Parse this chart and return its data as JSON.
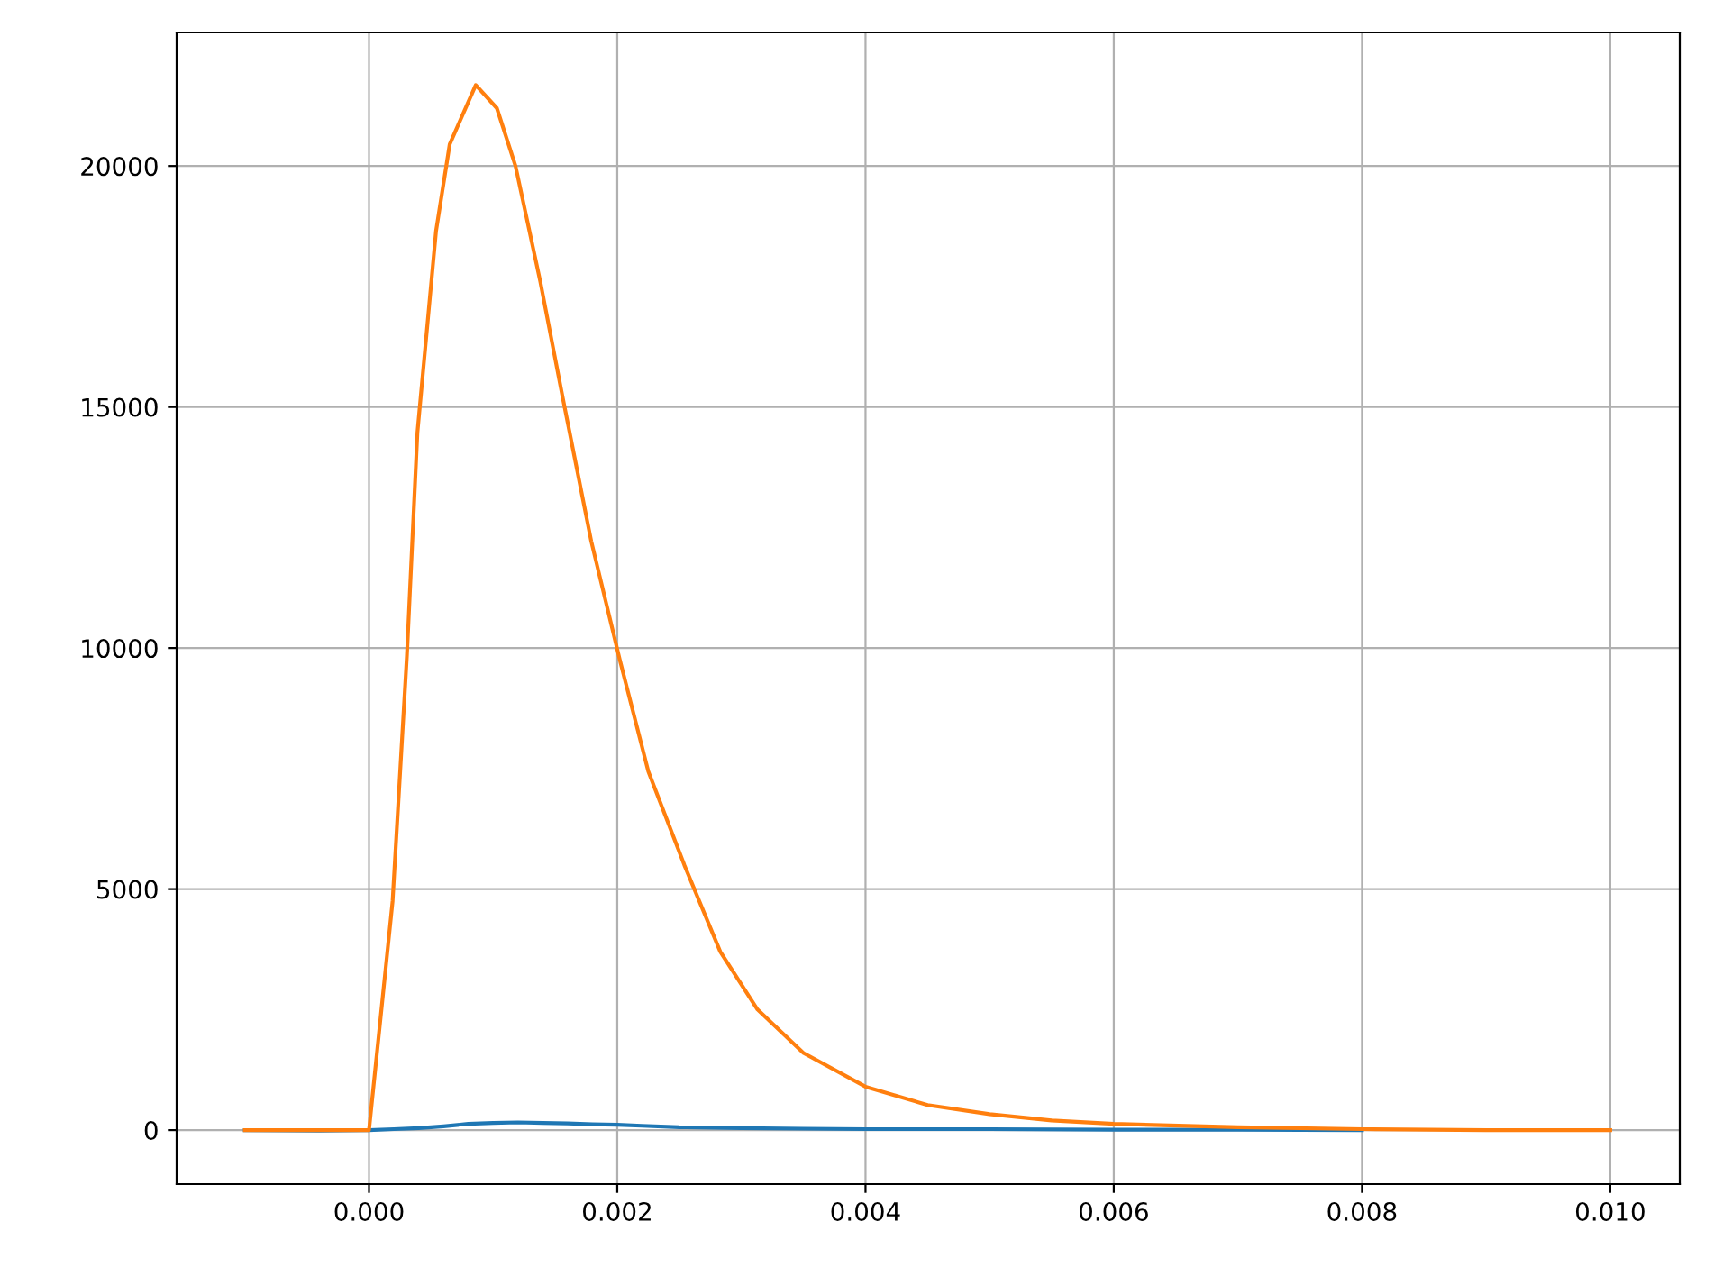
{
  "chart_data": {
    "type": "line",
    "xlim": [
      -0.00155,
      0.01056
    ],
    "ylim": [
      -1120,
      22770
    ],
    "xticks": [
      {
        "value": 0,
        "label": "0.000"
      },
      {
        "value": 0.002,
        "label": "0.002"
      },
      {
        "value": 0.004,
        "label": "0.004"
      },
      {
        "value": 0.006,
        "label": "0.006"
      },
      {
        "value": 0.008,
        "label": "0.008"
      },
      {
        "value": 0.01,
        "label": "0.010"
      }
    ],
    "yticks": [
      0,
      5000,
      10000,
      15000,
      20000
    ],
    "grid": true,
    "series": [
      {
        "color": "#1f77b4",
        "x": [
          -0.001,
          -0.0004,
          0,
          0.0002,
          0.0004,
          0.0006,
          0.0008,
          0.001,
          0.0012,
          0.0014,
          0.0016,
          0.0018,
          0.002,
          0.0022,
          0.0025,
          0.003,
          0.0035,
          0.004,
          0.005,
          0.006,
          0.007,
          0.008
        ],
        "values": [
          0,
          -10,
          0,
          20,
          40,
          80,
          130,
          150,
          160,
          150,
          140,
          120,
          110,
          90,
          60,
          40,
          30,
          20,
          20,
          10,
          10,
          0
        ]
      },
      {
        "color": "#ff7f0e",
        "x": [
          -0.001,
          0,
          0.00019,
          0.000305,
          0.00039,
          0.00054,
          0.00065,
          0.00086,
          0.00103,
          0.00118,
          0.00138,
          0.00156,
          0.00179,
          0.00202,
          0.00225,
          0.00254,
          0.00283,
          0.00313,
          0.0035,
          0.004,
          0.0045,
          0.005,
          0.0055,
          0.006,
          0.007,
          0.008,
          0.009,
          0.01
        ],
        "values": [
          0,
          0,
          4750,
          9830,
          14470,
          18650,
          20450,
          21680,
          21200,
          20000,
          17600,
          15200,
          12220,
          9760,
          7440,
          5500,
          3700,
          2500,
          1600,
          900,
          520,
          330,
          200,
          130,
          60,
          20,
          0,
          0
        ]
      }
    ]
  }
}
